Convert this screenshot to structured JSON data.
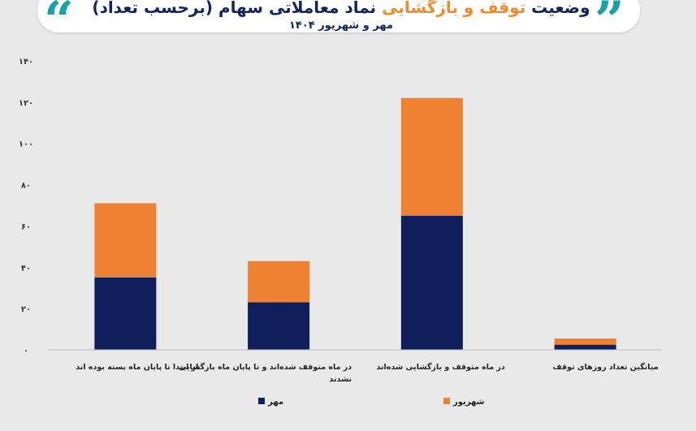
{
  "header": {
    "title_part1": "وضعیت",
    "title_highlight": "توقف و بازگشایی",
    "title_part2": "نماد معاملاتی سهام (برحسب تعداد)",
    "subtitle": "مهر و شهریور ۱۴۰۴",
    "quote_left": "“",
    "quote_right": "”",
    "accent_color": "#17a3a6"
  },
  "chart_data": {
    "type": "bar",
    "stacked": true,
    "categories": [
      "از ابتدا تا پایان ماه بسته بوده اند",
      "در ماه متوقف شده‌اند و تا پایان ماه بازگشایی نشدند",
      "در ماه متوقف و بازگشایی شده‌اند",
      "میانگین تعداد روزهای توقف"
    ],
    "series": [
      {
        "name": "مهر",
        "color": "#0f1f5c",
        "values": [
          35,
          23,
          65,
          2.5
        ]
      },
      {
        "name": "شهریور",
        "color": "#ef8232",
        "values": [
          36,
          20,
          57,
          3
        ]
      }
    ],
    "ylim": [
      0,
      140
    ],
    "yticks": [
      0,
      20,
      40,
      60,
      80,
      100,
      120,
      140
    ],
    "ytick_labels": [
      "۰",
      "۲۰",
      "۴۰",
      "۶۰",
      "۸۰",
      "۱۰۰",
      "۱۲۰",
      "۱۴۰"
    ],
    "grid": false,
    "legend_position": "bottom"
  }
}
